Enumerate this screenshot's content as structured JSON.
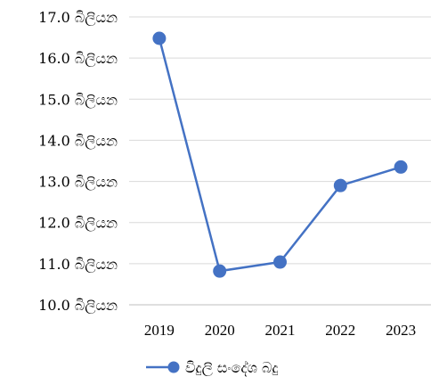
{
  "chart_data": {
    "type": "line",
    "categories": [
      "2019",
      "2020",
      "2021",
      "2022",
      "2023"
    ],
    "series": [
      {
        "name": "විදුලි සංදේශ බදු",
        "values": [
          16.48,
          10.82,
          11.04,
          12.9,
          13.35
        ],
        "color": "#4472C4"
      }
    ],
    "ylim": [
      10.0,
      17.0
    ],
    "yticks": [
      10.0,
      11.0,
      12.0,
      13.0,
      14.0,
      15.0,
      16.0,
      17.0
    ],
    "ytick_labels": [
      "10.0 බිලියන",
      "11.0 බිලියන",
      "12.0 බිලියන",
      "13.0 බිලියන",
      "14.0 බිලියන",
      "15.0 බිලියන",
      "16.0 බිලියන",
      "17.0 බිලියන"
    ],
    "grid": true,
    "legend_position": "bottom",
    "gridline_color": "#D9D9D9",
    "axis_color": "#BFBFBF"
  }
}
